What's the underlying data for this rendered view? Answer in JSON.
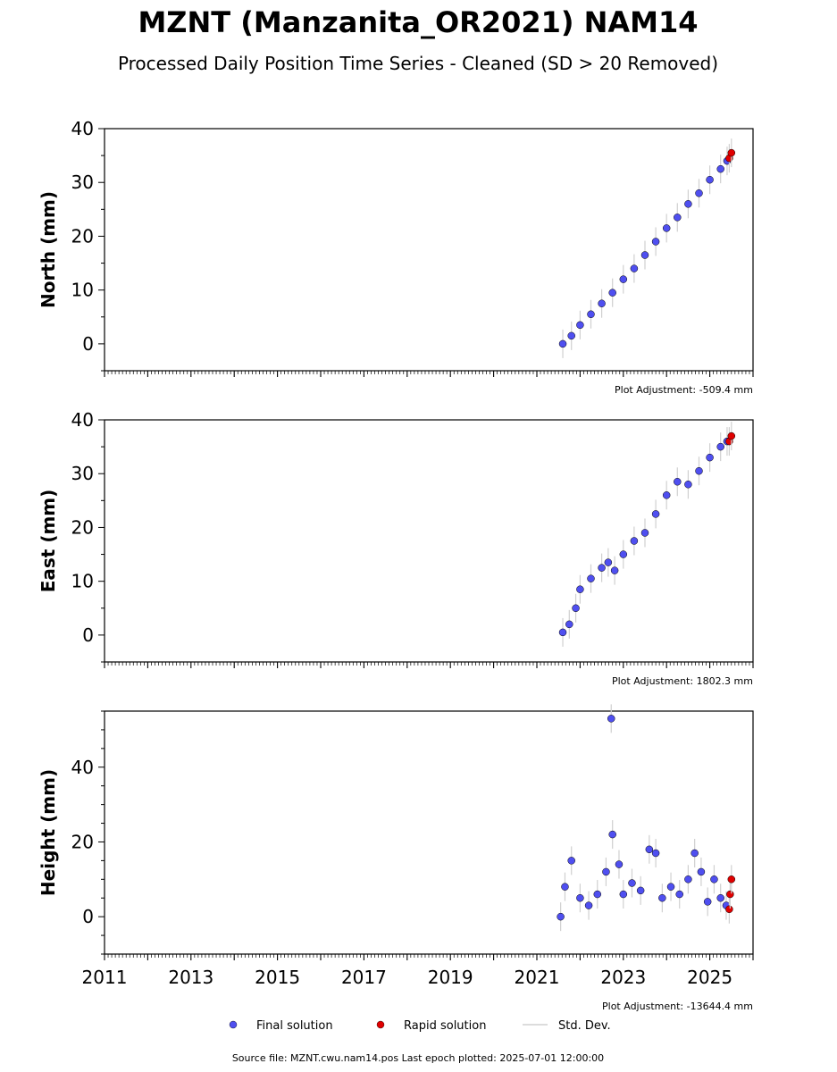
{
  "title": "MZNT (Manzanita_OR2021) NAM14",
  "subtitle": "Processed Daily Position Time Series - Cleaned (SD > 20 Removed)",
  "footer": "Source file: MZNT.cwu.nam14.pos  Last epoch plotted: 2025-07-01 12:00:00",
  "legend": {
    "final_label": "Final solution",
    "rapid_label": "Rapid solution",
    "std_label": "Std. Dev.",
    "final_color": "#4f4ff0",
    "rapid_color": "#e00000",
    "std_color": "#d0d0d0"
  },
  "chart_data": [
    {
      "type": "scatter",
      "ylabel": "North (mm)",
      "adjustment": "Plot Adjustment: -509.4 mm",
      "xlim": [
        2011,
        2026
      ],
      "ylim": [
        -5,
        40
      ],
      "yticks": [
        0,
        10,
        20,
        30,
        40
      ],
      "xtick_labels": [],
      "final_series": {
        "name": "Final solution",
        "x": [
          2021.6,
          2021.8,
          2022.0,
          2022.25,
          2022.5,
          2022.75,
          2023.0,
          2023.25,
          2023.5,
          2023.75,
          2024.0,
          2024.25,
          2024.5,
          2024.75,
          2025.0,
          2025.25,
          2025.4
        ],
        "y": [
          0,
          1.5,
          3.5,
          5.5,
          7.5,
          9.5,
          12,
          14,
          16.5,
          19,
          21.5,
          23.5,
          26,
          28,
          30.5,
          32.5,
          34
        ]
      },
      "rapid_series": {
        "name": "Rapid solution",
        "x": [
          2025.45,
          2025.5
        ],
        "y": [
          34.5,
          35.5
        ]
      }
    },
    {
      "type": "scatter",
      "ylabel": "East (mm)",
      "adjustment": "Plot Adjustment: 1802.3 mm",
      "xlim": [
        2011,
        2026
      ],
      "ylim": [
        -5,
        40
      ],
      "yticks": [
        0,
        10,
        20,
        30,
        40
      ],
      "xtick_labels": [],
      "final_series": {
        "name": "Final solution",
        "x": [
          2021.6,
          2021.75,
          2021.9,
          2022.0,
          2022.25,
          2022.5,
          2022.65,
          2022.8,
          2023.0,
          2023.25,
          2023.5,
          2023.75,
          2024.0,
          2024.25,
          2024.5,
          2024.75,
          2025.0,
          2025.25,
          2025.4
        ],
        "y": [
          0.5,
          2,
          5,
          8.5,
          10.5,
          12.5,
          13.5,
          12,
          15,
          17.5,
          19,
          22.5,
          26,
          28.5,
          28,
          30.5,
          33,
          35,
          36
        ]
      },
      "rapid_series": {
        "name": "Rapid solution",
        "x": [
          2025.45,
          2025.5
        ],
        "y": [
          36,
          37
        ]
      }
    },
    {
      "type": "scatter",
      "ylabel": "Height (mm)",
      "adjustment": "Plot Adjustment: -13644.4 mm",
      "xlim": [
        2011,
        2026
      ],
      "ylim": [
        -10,
        55
      ],
      "yticks": [
        0,
        20,
        40
      ],
      "xtick_labels": [
        "2011",
        "2013",
        "2015",
        "2017",
        "2019",
        "2021",
        "2023",
        "2025"
      ],
      "final_series": {
        "name": "Final solution",
        "x": [
          2021.55,
          2021.65,
          2021.8,
          2022.0,
          2022.2,
          2022.4,
          2022.6,
          2022.75,
          2022.9,
          2023.0,
          2023.2,
          2023.4,
          2023.6,
          2023.75,
          2023.9,
          2024.1,
          2024.3,
          2024.5,
          2024.65,
          2024.8,
          2024.95,
          2025.1,
          2025.25,
          2025.38,
          2022.72
        ],
        "y": [
          0,
          8,
          15,
          5,
          3,
          6,
          12,
          22,
          14,
          6,
          9,
          7,
          18,
          17,
          5,
          8,
          6,
          10,
          17,
          12,
          4,
          10,
          5,
          3,
          53
        ]
      },
      "rapid_series": {
        "name": "Rapid solution",
        "x": [
          2025.45,
          2025.47,
          2025.5
        ],
        "y": [
          2,
          6,
          10
        ]
      }
    }
  ]
}
